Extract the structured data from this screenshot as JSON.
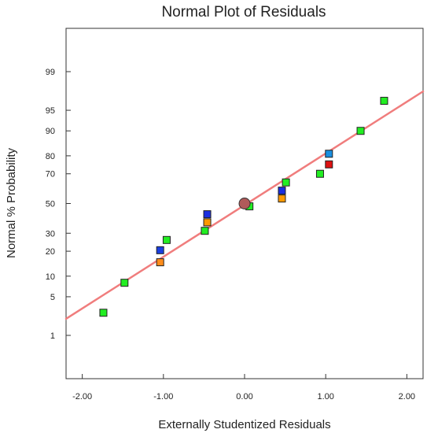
{
  "chart_data": {
    "type": "scatter",
    "title": "Normal Plot of Residuals",
    "xlabel": "Externally Studentized Residuals",
    "ylabel": "Normal % Probability",
    "xlim": [
      -2.2,
      2.2
    ],
    "ylim_probability_percent": [
      0.1,
      99.9
    ],
    "y_scale": "normal-probability",
    "grid": false,
    "x_ticks": [
      {
        "value": -2,
        "label": "-2.00"
      },
      {
        "value": -1,
        "label": "-1.00"
      },
      {
        "value": 0,
        "label": "0.00"
      },
      {
        "value": 1,
        "label": "1.00"
      },
      {
        "value": 2,
        "label": "2.00"
      }
    ],
    "y_ticks": [
      {
        "value": 1,
        "label": "1"
      },
      {
        "value": 5,
        "label": "5"
      },
      {
        "value": 10,
        "label": "10"
      },
      {
        "value": 20,
        "label": "20"
      },
      {
        "value": 30,
        "label": "30"
      },
      {
        "value": 50,
        "label": "50"
      },
      {
        "value": 70,
        "label": "70"
      },
      {
        "value": 80,
        "label": "80"
      },
      {
        "value": 90,
        "label": "90"
      },
      {
        "value": 95,
        "label": "95"
      },
      {
        "value": 99,
        "label": "99"
      }
    ],
    "reference_line": {
      "color": "#f07d7d",
      "points": [
        {
          "x": -2.2,
          "y": 2.1
        },
        {
          "x": 2.2,
          "y": 97.6
        }
      ]
    },
    "center_marker": {
      "x": 0.0,
      "y": 50,
      "color": "#b05a5a"
    },
    "points": [
      {
        "x": -1.74,
        "y": 2.7,
        "color": "#22ee22"
      },
      {
        "x": -1.48,
        "y": 8.1,
        "color": "#22ee22"
      },
      {
        "x": -1.04,
        "y": 15.0,
        "color": "#ff8c1a"
      },
      {
        "x": -1.04,
        "y": 20.5,
        "color": "#1a3fe0"
      },
      {
        "x": -0.96,
        "y": 26.0,
        "color": "#22ee22"
      },
      {
        "x": -0.49,
        "y": 31.5,
        "color": "#22ee22"
      },
      {
        "x": -0.46,
        "y": 37.0,
        "color": "#ff9900"
      },
      {
        "x": -0.46,
        "y": 42.5,
        "color": "#1a2ee0"
      },
      {
        "x": 0.06,
        "y": 48.0,
        "color": "#22ee22"
      },
      {
        "x": 0.46,
        "y": 53.5,
        "color": "#ff9900"
      },
      {
        "x": 0.46,
        "y": 59.0,
        "color": "#1a2ee0"
      },
      {
        "x": 0.51,
        "y": 64.5,
        "color": "#22ee22"
      },
      {
        "x": 0.93,
        "y": 70.0,
        "color": "#22ee22"
      },
      {
        "x": 1.04,
        "y": 75.5,
        "color": "#dd1111"
      },
      {
        "x": 1.04,
        "y": 81.0,
        "color": "#1a8fe0"
      },
      {
        "x": 1.43,
        "y": 90.0,
        "color": "#22ee22"
      },
      {
        "x": 1.72,
        "y": 96.5,
        "color": "#22ee22"
      }
    ]
  }
}
